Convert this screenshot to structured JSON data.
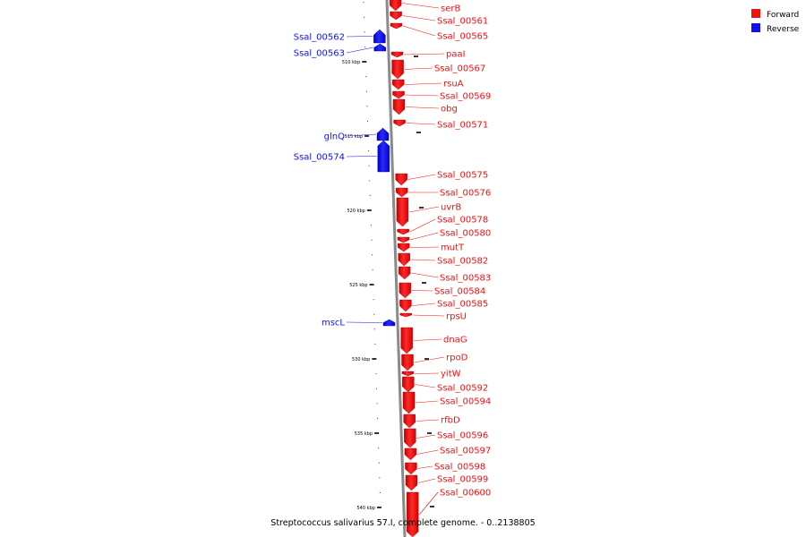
{
  "caption": "Streptococcus salivarius 57.I, complete genome. - 0..2138805",
  "legend": [
    {
      "label": "Forward",
      "color": "#ee1111"
    },
    {
      "label": "Reverse",
      "color": "#1111ee"
    }
  ],
  "axis": {
    "major_ticks": [
      {
        "pos_kbp": 510,
        "label": "510 kbp"
      },
      {
        "pos_kbp": 515,
        "label": "515 kbp"
      },
      {
        "pos_kbp": 520,
        "label": "520 kbp"
      },
      {
        "pos_kbp": 525,
        "label": "525 kbp"
      },
      {
        "pos_kbp": 530,
        "label": "530 kbp"
      },
      {
        "pos_kbp": 535,
        "label": "535 kbp"
      },
      {
        "pos_kbp": 540,
        "label": "540 kbp"
      }
    ]
  },
  "chart_data": {
    "type": "genome-map",
    "strands": [
      "forward",
      "reverse"
    ],
    "features": [
      {
        "name": "serB",
        "strand": "forward"
      },
      {
        "name": "Ssal_00561",
        "strand": "forward"
      },
      {
        "name": "Ssal_00562",
        "strand": "reverse"
      },
      {
        "name": "Ssal_00563",
        "strand": "reverse"
      },
      {
        "name": "Ssal_00565",
        "strand": "forward"
      },
      {
        "name": "paaI",
        "strand": "forward"
      },
      {
        "name": "Ssal_00567",
        "strand": "forward"
      },
      {
        "name": "rsuA",
        "strand": "forward"
      },
      {
        "name": "Ssal_00569",
        "strand": "forward"
      },
      {
        "name": "obg",
        "strand": "forward"
      },
      {
        "name": "Ssal_00571",
        "strand": "forward"
      },
      {
        "name": "glnQ",
        "strand": "reverse"
      },
      {
        "name": "Ssal_00574",
        "strand": "reverse"
      },
      {
        "name": "Ssal_00575",
        "strand": "forward"
      },
      {
        "name": "Ssal_00576",
        "strand": "forward"
      },
      {
        "name": "uvrB",
        "strand": "forward"
      },
      {
        "name": "Ssal_00578",
        "strand": "forward"
      },
      {
        "name": "Ssal_00580",
        "strand": "forward"
      },
      {
        "name": "mutT",
        "strand": "forward"
      },
      {
        "name": "Ssal_00582",
        "strand": "forward"
      },
      {
        "name": "Ssal_00583",
        "strand": "forward"
      },
      {
        "name": "Ssal_00584",
        "strand": "forward"
      },
      {
        "name": "Ssal_00585",
        "strand": "forward"
      },
      {
        "name": "rpsU",
        "strand": "forward"
      },
      {
        "name": "mscL",
        "strand": "reverse"
      },
      {
        "name": "dnaG",
        "strand": "forward"
      },
      {
        "name": "rpoD",
        "strand": "forward"
      },
      {
        "name": "yitW",
        "strand": "forward"
      },
      {
        "name": "Ssal_00592",
        "strand": "forward"
      },
      {
        "name": "Ssal_00594",
        "strand": "forward"
      },
      {
        "name": "rfbD",
        "strand": "forward"
      },
      {
        "name": "Ssal_00596",
        "strand": "forward"
      },
      {
        "name": "Ssal_00597",
        "strand": "forward"
      },
      {
        "name": "Ssal_00598",
        "strand": "forward"
      },
      {
        "name": "Ssal_00599",
        "strand": "forward"
      },
      {
        "name": "Ssal_00600",
        "strand": "forward"
      }
    ]
  }
}
